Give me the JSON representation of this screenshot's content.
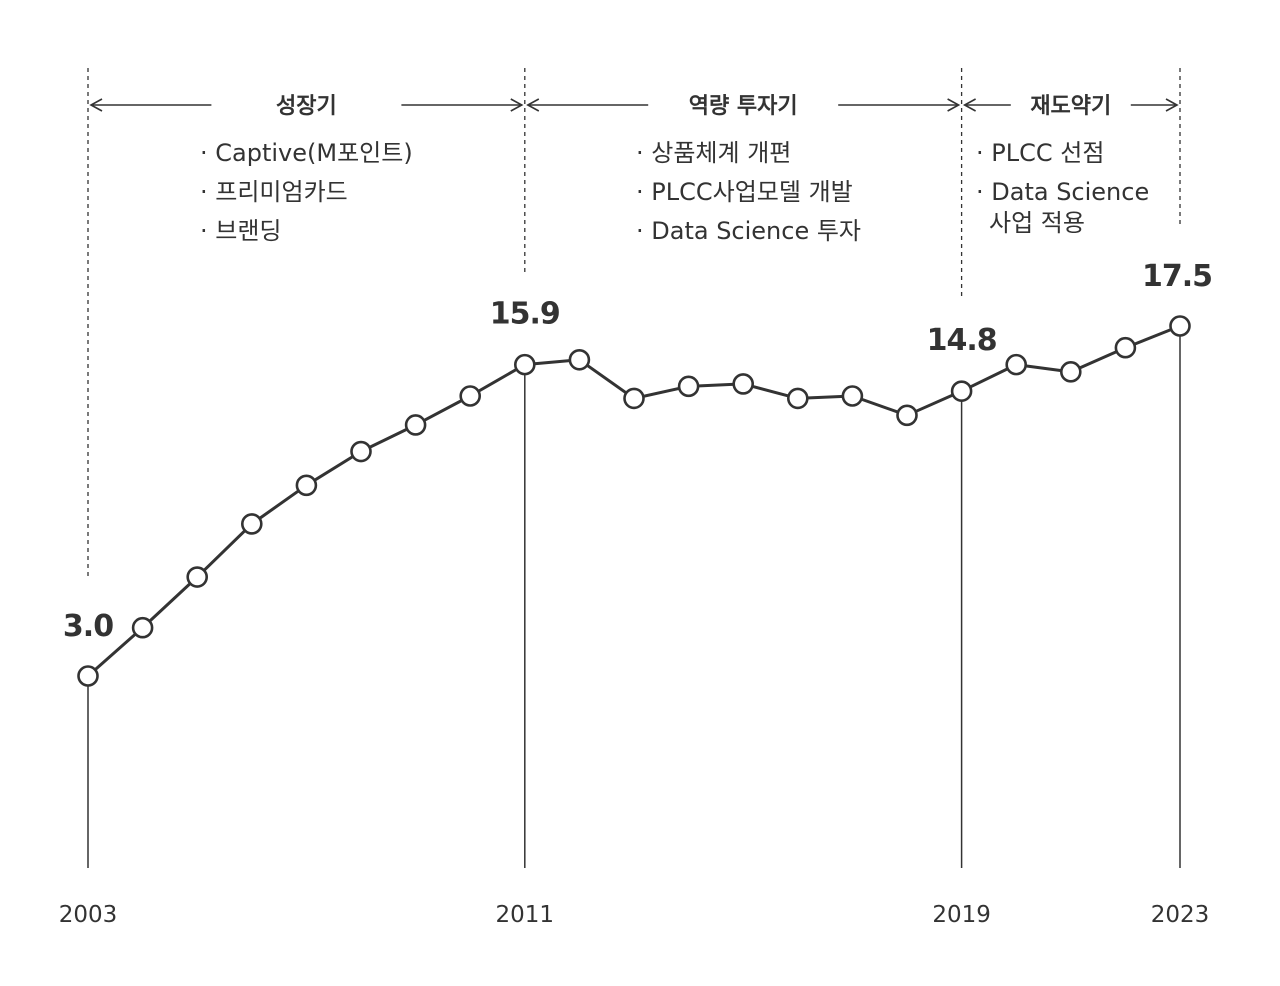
{
  "chart_data": {
    "type": "line",
    "x": [
      2003,
      2004,
      2005,
      2006,
      2007,
      2008,
      2009,
      2010,
      2011,
      2012,
      2013,
      2014,
      2015,
      2016,
      2017,
      2018,
      2019,
      2020,
      2021,
      2022,
      2023
    ],
    "values": [
      3.0,
      5.0,
      7.1,
      9.3,
      10.9,
      12.3,
      13.4,
      14.6,
      15.9,
      16.1,
      14.5,
      15.0,
      15.1,
      14.5,
      14.6,
      13.8,
      14.8,
      15.9,
      15.6,
      16.6,
      17.5
    ],
    "x_ticks": [
      "2003",
      "2011",
      "2019",
      "2023"
    ],
    "data_labels": [
      {
        "x": 2003,
        "text": "3.0"
      },
      {
        "x": 2011,
        "text": "15.9"
      },
      {
        "x": 2019,
        "text": "14.8"
      },
      {
        "x": 2023,
        "text": "17.5"
      }
    ],
    "phases": [
      {
        "name": "성장기",
        "start": 2003,
        "end": 2011,
        "items": [
          "· Captive(M포인트)",
          "· 프리미엄카드",
          "· 브랜딩"
        ]
      },
      {
        "name": "역량 투자기",
        "start": 2011,
        "end": 2019,
        "items": [
          "· 상품체계 개편",
          "· PLCC사업모델 개발",
          "· Data Science 투자"
        ]
      },
      {
        "name": "재도약기",
        "start": 2019,
        "end": 2023,
        "items": [
          "· PLCC 선점",
          "· Data Science",
          "사업 적용"
        ]
      }
    ],
    "grid": false,
    "legend": "none"
  },
  "colors": {
    "line": "#333333",
    "marker_fill": "#ffffff",
    "text": "#333333"
  }
}
